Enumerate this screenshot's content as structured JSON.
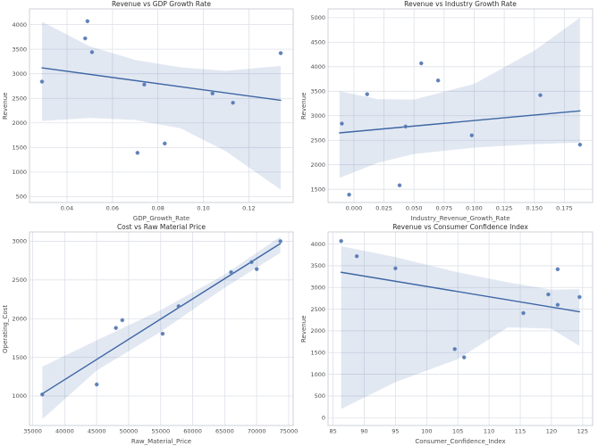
{
  "style": {
    "accent": "#4c72b0",
    "line_color": "#3e66a4",
    "band_fill": "#4c72b0",
    "band_opacity": 0.16,
    "grid_color": "#dde1e8",
    "spine_color": "#ccd1da",
    "tick_text_color": "#4d4d4d",
    "title_text_color": "#2e2e2e",
    "plot_background": "#ffffff"
  },
  "chart_data": [
    {
      "type": "scatter",
      "title": "Revenue vs GDP Growth Rate",
      "xlabel": "GDP_Growth_Rate",
      "ylabel": "Revenue",
      "xlim": [
        0.0235,
        0.1395
      ],
      "ylim": [
        380,
        4320
      ],
      "grid": true,
      "legend": "none",
      "xticks": {
        "values": [
          0.04,
          0.06,
          0.08,
          0.1,
          0.12
        ],
        "labels": [
          "0.04",
          "0.06",
          "0.08",
          "0.10",
          "0.12"
        ]
      },
      "yticks": {
        "values": [
          500,
          1000,
          1500,
          2000,
          2500,
          3000,
          3500,
          4000
        ],
        "labels": [
          "500",
          "1000",
          "1500",
          "2000",
          "2500",
          "3000",
          "3500",
          "4000"
        ]
      },
      "points": [
        [
          0.029,
          2840
        ],
        [
          0.049,
          4070
        ],
        [
          0.048,
          3720
        ],
        [
          0.051,
          3440
        ],
        [
          0.074,
          2780
        ],
        [
          0.071,
          1390
        ],
        [
          0.083,
          1580
        ],
        [
          0.104,
          2600
        ],
        [
          0.113,
          2410
        ],
        [
          0.134,
          3420
        ]
      ],
      "regression_line": {
        "x": [
          0.029,
          0.134
        ],
        "y": [
          3120,
          2460
        ]
      },
      "confidence_band": {
        "x": [
          0.029,
          0.05,
          0.07,
          0.09,
          0.11,
          0.134
        ],
        "upper": [
          4060,
          3560,
          3280,
          3130,
          3060,
          3160
        ],
        "lower": [
          2040,
          2100,
          2060,
          1890,
          1420,
          640
        ]
      }
    },
    {
      "type": "scatter",
      "title": "Revenue vs Industry Growth Rate",
      "xlabel": "Industry_Revenue_Growth_Rate",
      "ylabel": "Revenue",
      "xlim": [
        -0.0215,
        0.1985
      ],
      "ylim": [
        1230,
        5180
      ],
      "grid": true,
      "legend": "none",
      "xticks": {
        "values": [
          0.0,
          0.025,
          0.05,
          0.075,
          0.1,
          0.125,
          0.15,
          0.175
        ],
        "labels": [
          "0.000",
          "0.025",
          "0.050",
          "0.075",
          "0.100",
          "0.125",
          "0.150",
          "0.175"
        ]
      },
      "yticks": {
        "values": [
          1500,
          2000,
          2500,
          3000,
          3500,
          4000,
          4500,
          5000
        ],
        "labels": [
          "1500",
          "2000",
          "2500",
          "3000",
          "3500",
          "4000",
          "4500",
          "5000"
        ]
      },
      "points": [
        [
          -0.01,
          2840
        ],
        [
          -0.004,
          1390
        ],
        [
          0.011,
          3440
        ],
        [
          0.038,
          1580
        ],
        [
          0.043,
          2780
        ],
        [
          0.056,
          4070
        ],
        [
          0.07,
          3720
        ],
        [
          0.098,
          2600
        ],
        [
          0.155,
          3420
        ],
        [
          0.188,
          2410
        ]
      ],
      "regression_line": {
        "x": [
          -0.012,
          0.188
        ],
        "y": [
          2650,
          3100
        ]
      },
      "confidence_band": {
        "x": [
          -0.012,
          0.02,
          0.05,
          0.1,
          0.15,
          0.188
        ],
        "upper": [
          3500,
          3340,
          3330,
          3650,
          4330,
          5000
        ],
        "lower": [
          1730,
          2040,
          2220,
          2350,
          2420,
          2450
        ]
      }
    },
    {
      "type": "scatter",
      "title": "Cost vs Raw Material Price",
      "xlabel": "Raw_Material_Price",
      "ylabel": "Operating_Cost",
      "xlim": [
        34500,
        75700
      ],
      "ylim": [
        620,
        3120
      ],
      "grid": true,
      "legend": "none",
      "xticks": {
        "values": [
          35000,
          40000,
          45000,
          50000,
          55000,
          60000,
          65000,
          70000,
          75000
        ],
        "labels": [
          "35000",
          "40000",
          "45000",
          "50000",
          "55000",
          "60000",
          "65000",
          "70000",
          "75000"
        ]
      },
      "yticks": {
        "values": [
          1000,
          1500,
          2000,
          2500,
          3000
        ],
        "labels": [
          "1000",
          "1500",
          "2000",
          "2500",
          "3000"
        ]
      },
      "points": [
        [
          36500,
          1020
        ],
        [
          45000,
          1150
        ],
        [
          48000,
          1880
        ],
        [
          49000,
          1980
        ],
        [
          55300,
          1805
        ],
        [
          57800,
          2160
        ],
        [
          66000,
          2600
        ],
        [
          69200,
          2730
        ],
        [
          70000,
          2640
        ],
        [
          73700,
          3000
        ]
      ],
      "regression_line": {
        "x": [
          36500,
          73700
        ],
        "y": [
          1030,
          2970
        ]
      },
      "confidence_band": {
        "x": [
          36500,
          45000,
          55000,
          65000,
          73700
        ],
        "upper": [
          1380,
          1720,
          2110,
          2570,
          3060
        ],
        "lower": [
          700,
          1330,
          1830,
          2400,
          2850
        ]
      }
    },
    {
      "type": "scatter",
      "title": "Revenue vs Consumer Confidence Index",
      "xlabel": "Consumer_Confidence_Index",
      "ylabel": "Revenue",
      "xlim": [
        84.2,
        126.6
      ],
      "ylim": [
        -180,
        4280
      ],
      "grid": true,
      "legend": "none",
      "xticks": {
        "values": [
          85,
          90,
          95,
          100,
          105,
          110,
          115,
          120,
          125
        ],
        "labels": [
          "85",
          "90",
          "95",
          "100",
          "105",
          "110",
          "115",
          "120",
          "125"
        ]
      },
      "yticks": {
        "values": [
          0,
          500,
          1000,
          1500,
          2000,
          2500,
          3000,
          3500,
          4000
        ],
        "labels": [
          "0",
          "500",
          "1000",
          "1500",
          "2000",
          "2500",
          "3000",
          "3500",
          "4000"
        ]
      },
      "points": [
        [
          86.3,
          4070
        ],
        [
          88.8,
          3720
        ],
        [
          95,
          3440
        ],
        [
          104.5,
          1580
        ],
        [
          106,
          1390
        ],
        [
          115.5,
          2410
        ],
        [
          119.5,
          2840
        ],
        [
          121,
          3420
        ],
        [
          121,
          2600
        ],
        [
          124.5,
          2780
        ]
      ],
      "regression_line": {
        "x": [
          86.3,
          124.5
        ],
        "y": [
          3350,
          2440
        ]
      },
      "confidence_band": {
        "x": [
          86.3,
          95,
          105,
          113,
          120,
          124.5
        ],
        "upper": [
          3950,
          3700,
          3350,
          3120,
          2950,
          2960
        ],
        "lower": [
          200,
          820,
          1350,
          2080,
          2050,
          1650
        ]
      }
    }
  ]
}
